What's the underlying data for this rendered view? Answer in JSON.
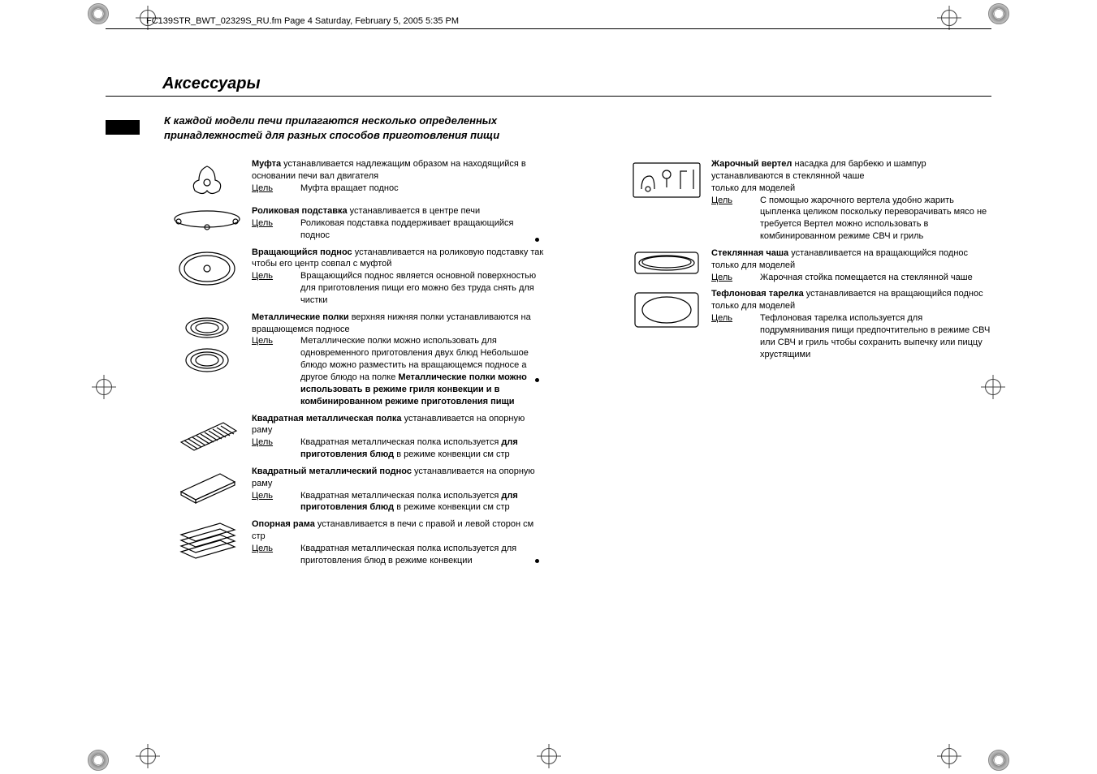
{
  "meta": {
    "header_line": "FC139STR_BWT_02329S_RU.fm  Page 4  Saturday, February 5, 2005  5:35 PM"
  },
  "page": {
    "title": "Аксессуары",
    "intro": "К каждой модели печи прилагаются несколько определенных принадлежностей для разных способов приготовления пищи",
    "purpose_label": "Цель"
  },
  "left": [
    {
      "icon": "coupler",
      "lead_bold": "Муфта",
      "lead_rest": " устанавливается надлежащим образом на находящийся в основании печи вал двигателя",
      "purpose": "Муфта вращает поднос"
    },
    {
      "icon": "roller-ring",
      "lead_bold": "Роликовая подставка",
      "lead_rest": " устанавливается в центре печи",
      "purpose": "Роликовая подставка поддерживает вращающийся поднос"
    },
    {
      "icon": "turntable",
      "lead_bold": "Вращающийся поднос",
      "lead_rest": " устанавливается на роликовую подставку так  чтобы его центр совпал с муфтой",
      "purpose": "Вращающийся поднос является основной поверхностью для приготовления пищи  его можно без труда снять для чистки"
    },
    {
      "icon": "metal-racks",
      "lead_bold": "Металлические полки",
      "lead_rest": "  верхняя  нижняя полки  устанавливаются на вращающемся подносе",
      "purpose_html": "Металлические полки можно использовать для одновременного приготовления двух блюд  Небольшое блюдо можно разместить на вращающемся подносе  а другое блюдо   на полке  <span class=\"b\">Металлические полки можно использовать в режиме гриля  конвекции и в комбинированном режиме приготовления пищи</span>"
    },
    {
      "icon": "square-rack",
      "lead_bold": "Квадратная металлическая полка",
      "lead_rest": " устанавливается на опорную раму",
      "purpose_html": "Квадратная металлическая полка используется <span class=\"b\">для приготовления блюд</span> в режиме конвекции   см  стр"
    },
    {
      "icon": "square-tray",
      "lead_bold": "Квадратный металлический поднос",
      "lead_rest": " устанавливается на опорную раму",
      "purpose_html": "Квадратная металлическая полка используется <span class=\"b\">для приготовления блюд</span> в режиме конвекции   см  стр"
    },
    {
      "icon": "support-frame",
      "lead_bold": "Опорная рама",
      "lead_rest": " устанавливается в печи с правой и левой сторон   см  стр",
      "purpose": "Квадратная металлическая полка используется для приготовления блюд в режиме конвекции"
    }
  ],
  "right": [
    {
      "icon": "rotisserie",
      "lead_bold": "Жарочный вертел",
      "lead_rest": "  насадка для барбекю и шампур  устанавливаются в стеклянной чаше",
      "note": " только для моделей",
      "purpose": "С помощью жарочного вертела удобно жарить цыпленка целиком  поскольку переворачивать мясо не требуется  Вертел можно использовать в комбинированном режиме  СВЧ и гриль"
    },
    {
      "icon": "glass-bowl",
      "lead_bold": "Стеклянная чаша",
      "lead_rest": " устанавливается на вращающийся поднос",
      "note": " только для моделей",
      "purpose": "Жарочная стойка помещается на стеклянной чаше"
    },
    {
      "icon": "teflon-plate",
      "lead_bold": "Тефлоновая тарелка",
      "lead_rest": " устанавливается на вращающийся поднос",
      "note": " только для моделей",
      "purpose": "Тефлоновая тарелка используется для  подрумянивания  пищи предпочтительно в режиме  СВЧ  или  СВЧ и гриль   чтобы сохранить выпечку или пиццу хрустящими"
    }
  ]
}
